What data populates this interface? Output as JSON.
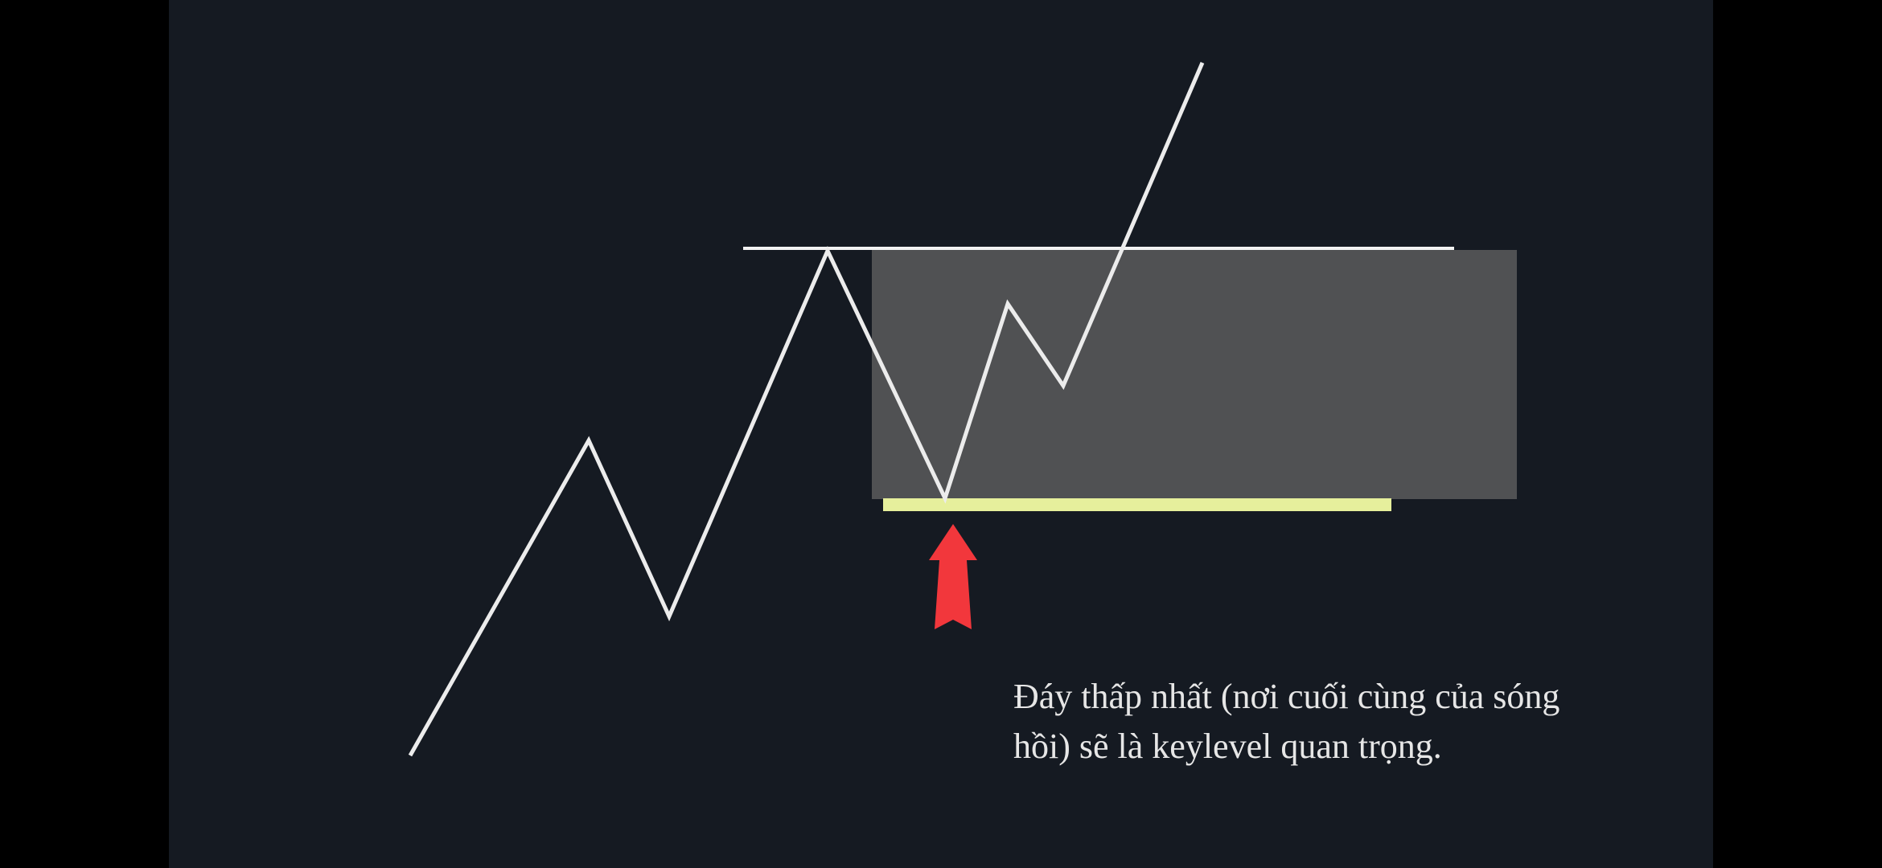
{
  "diagram": {
    "caption_line_1": "Đáy thấp nhất (nơi cuối cùng của sóng",
    "caption_line_2": "hồi) sẽ là keylevel quan trọng.",
    "colors": {
      "background": "#151a22",
      "letterbox": "#000000",
      "price_line": "#ececec",
      "resistance_line": "#f2f2f2",
      "zone_box": "#505153",
      "key_level": "#e6ef9c",
      "arrow": "#f2373c",
      "caption_text": "#e6e6e6"
    },
    "icons": {
      "pointer": "up-arrow-icon"
    }
  }
}
